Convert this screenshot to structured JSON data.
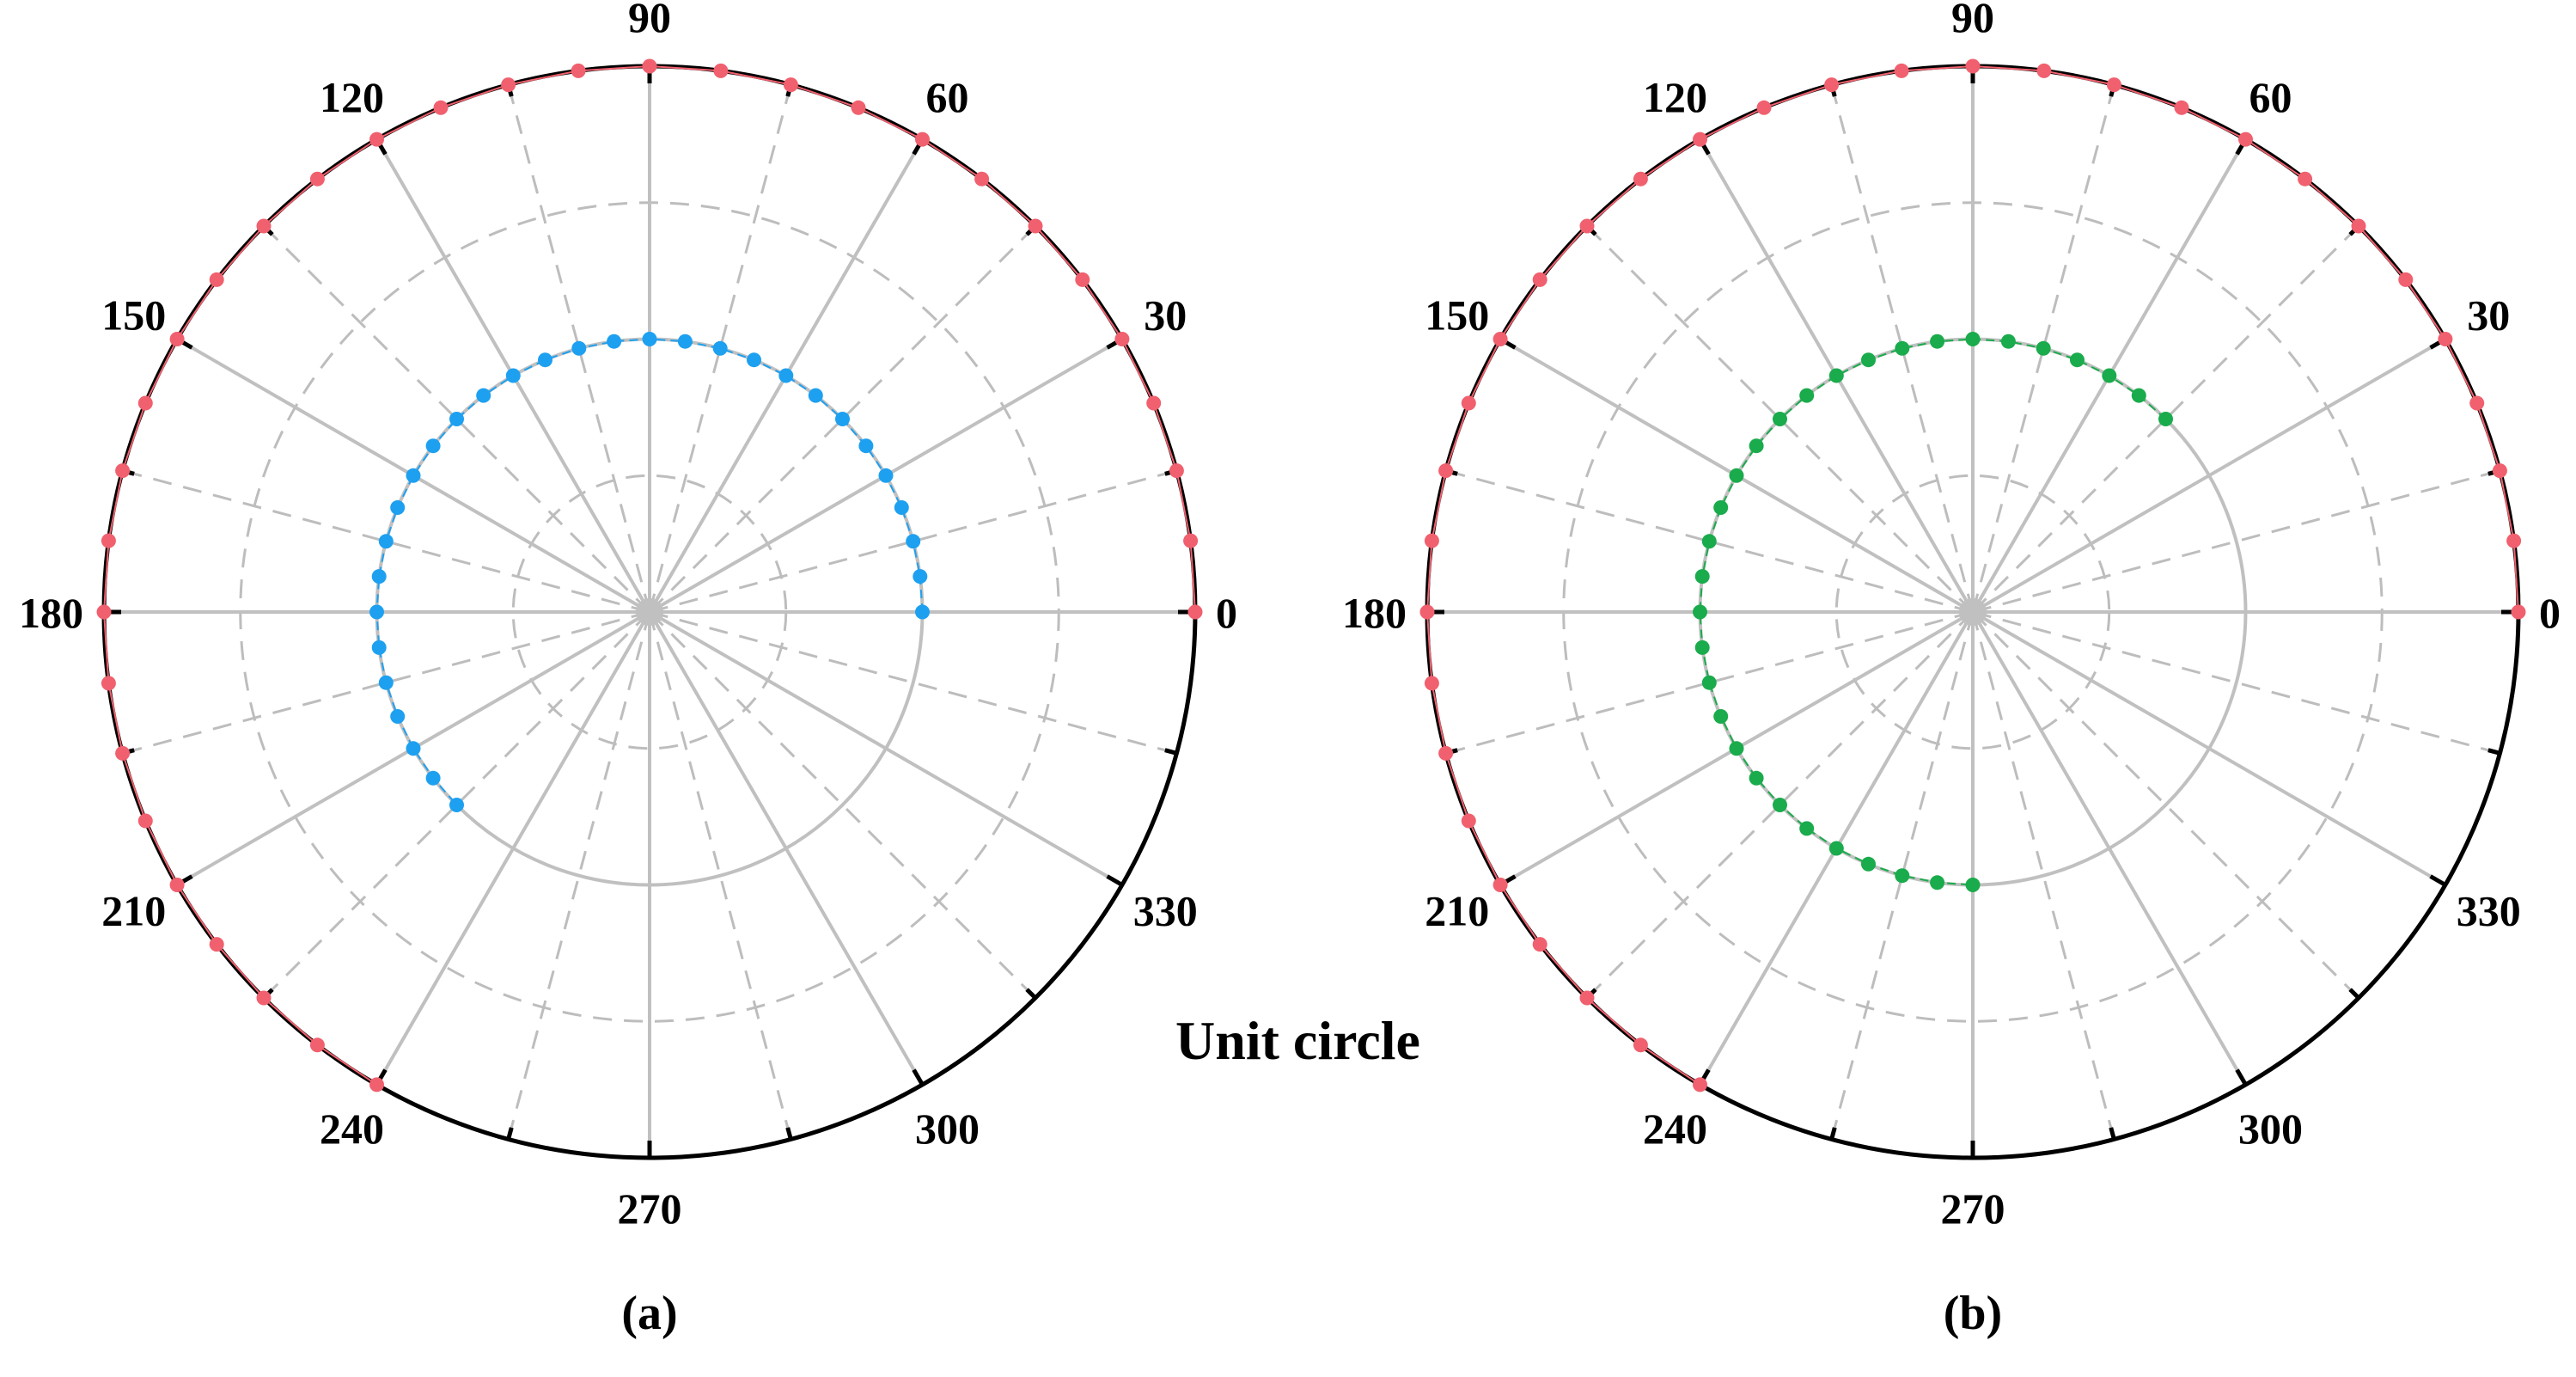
{
  "colors": {
    "outer_series": "#f0606e",
    "panel_a_series": "#1ea0f0",
    "panel_b_series": "#1aab4c",
    "grid_solid": "#c0c0c0",
    "grid_dashed": "#bdbdbd",
    "axis": "#000000"
  },
  "annotation": "Unit circle",
  "chart_data": [
    {
      "type": "scatter",
      "coordinate_system": "polar",
      "caption": "(a)",
      "angular_ticks": [
        "0",
        "30",
        "60",
        "90",
        "120",
        "150",
        "180",
        "210",
        "240",
        "270",
        "300",
        "330"
      ],
      "radial_range": [
        0,
        2
      ],
      "radial_solid_rings": [
        1
      ],
      "radial_dashed_rings": [
        0.5,
        1.5
      ],
      "angular_dashed_step_deg": 15,
      "angular_solid_step_deg": 30,
      "series": [
        {
          "theta_start_deg": 0,
          "theta_end_deg": 240,
          "theta_step_deg": 7.5,
          "r": 2,
          "line": "solid",
          "color_key": "outer_series"
        },
        {
          "theta_start_deg": 0,
          "theta_end_deg": 225,
          "theta_step_deg": 7.5,
          "r": 1,
          "line": "dashed",
          "color_key": "panel_a_series"
        }
      ]
    },
    {
      "type": "scatter",
      "coordinate_system": "polar",
      "caption": "(b)",
      "angular_ticks": [
        "0",
        "30",
        "60",
        "90",
        "120",
        "150",
        "180",
        "210",
        "240",
        "270",
        "300",
        "330"
      ],
      "radial_range": [
        0,
        2
      ],
      "radial_solid_rings": [
        1
      ],
      "radial_dashed_rings": [
        0.5,
        1.5
      ],
      "angular_dashed_step_deg": 15,
      "angular_solid_step_deg": 30,
      "series": [
        {
          "theta_start_deg": 0,
          "theta_end_deg": 240,
          "theta_step_deg": 7.5,
          "r": 2,
          "line": "solid",
          "color_key": "outer_series"
        },
        {
          "theta_start_deg": 45,
          "theta_end_deg": 270,
          "theta_step_deg": 7.5,
          "r": 1,
          "line": "dashed",
          "color_key": "panel_b_series"
        }
      ]
    }
  ]
}
